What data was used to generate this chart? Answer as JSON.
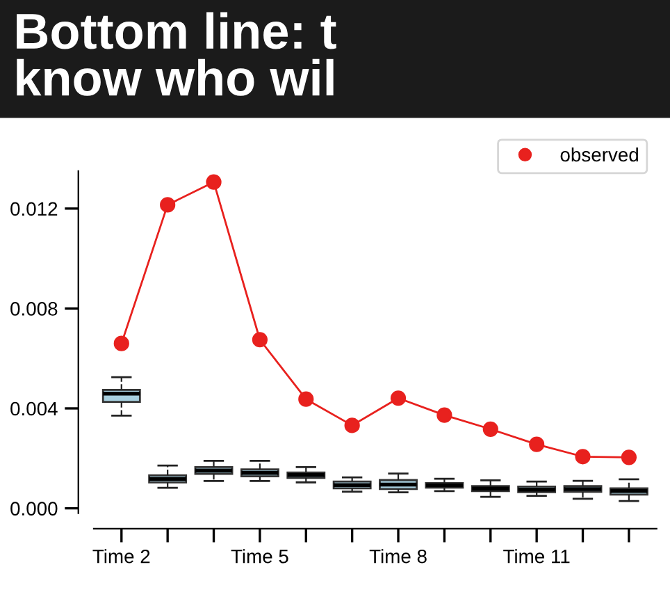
{
  "chart_data": {
    "type": "box",
    "title": "Bottom line: t\nknow who wil",
    "categories": [
      "Time 2",
      null,
      null,
      "Time 5",
      null,
      null,
      "Time 8",
      null,
      null,
      "Time 11",
      null,
      null
    ],
    "boxes": [
      {
        "low": 0.00371,
        "q1": 0.00426,
        "median": 0.00459,
        "q3": 0.00474,
        "high": 0.00525
      },
      {
        "low": 0.00082,
        "q1": 0.00104,
        "median": 0.00118,
        "q3": 0.00132,
        "high": 0.00171
      },
      {
        "low": 0.00109,
        "q1": 0.00138,
        "median": 0.00151,
        "q3": 0.00165,
        "high": 0.0019
      },
      {
        "low": 0.00109,
        "q1": 0.00128,
        "median": 0.00142,
        "q3": 0.00156,
        "high": 0.0019
      },
      {
        "low": 0.00104,
        "q1": 0.00122,
        "median": 0.00133,
        "q3": 0.00143,
        "high": 0.00165
      },
      {
        "low": 0.00067,
        "q1": 0.0008,
        "median": 0.00093,
        "q3": 0.00107,
        "high": 0.00124
      },
      {
        "low": 0.00064,
        "q1": 0.00077,
        "median": 0.00095,
        "q3": 0.00113,
        "high": 0.00139
      },
      {
        "low": 0.00069,
        "q1": 0.00083,
        "median": 0.00092,
        "q3": 0.00101,
        "high": 0.00118
      },
      {
        "low": 0.00046,
        "q1": 0.00069,
        "median": 0.00079,
        "q3": 0.00089,
        "high": 0.00112
      },
      {
        "low": 0.0005,
        "q1": 0.00065,
        "median": 0.00075,
        "q3": 0.00087,
        "high": 0.00107
      },
      {
        "low": 0.00038,
        "q1": 0.00066,
        "median": 0.00077,
        "q3": 0.00089,
        "high": 0.0011
      },
      {
        "low": 0.00029,
        "q1": 0.00055,
        "median": 0.00069,
        "q3": 0.0008,
        "high": 0.00116
      }
    ],
    "color": "#a8d0e0",
    "series": [
      {
        "name": "observed",
        "type": "line",
        "color": "#e8211e",
        "values": [
          0.0066,
          0.01215,
          0.01306,
          0.00675,
          0.00437,
          0.00332,
          0.00441,
          0.00373,
          0.00317,
          0.00256,
          0.00207,
          0.00204
        ]
      }
    ],
    "marker": "circle",
    "legend": "top right",
    "ylim": [
      -0.0002,
      0.0135
    ],
    "yticks": [
      {
        "value": 0,
        "label": "0.000"
      },
      {
        "value": 0.004,
        "label": "0.004"
      },
      {
        "value": 0.008,
        "label": "0.008"
      },
      {
        "value": 0.012,
        "label": "0.012"
      }
    ],
    "grid": false
  }
}
